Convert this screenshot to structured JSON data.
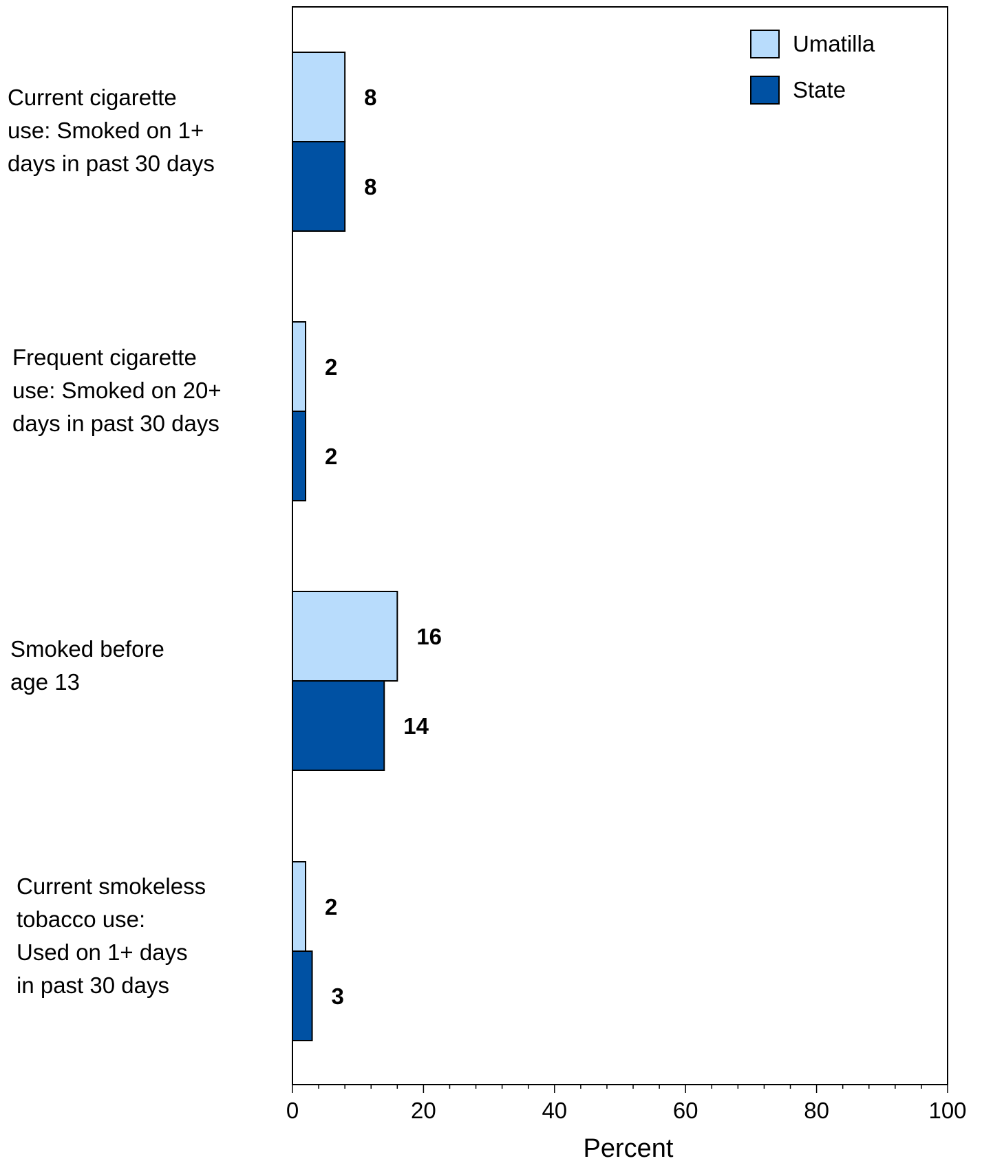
{
  "chart_data": {
    "type": "bar",
    "orientation": "horizontal",
    "title": "",
    "xlabel": "Percent",
    "ylabel": "",
    "xlim": [
      0,
      100
    ],
    "x_ticks": [
      "0",
      "20",
      "40",
      "60",
      "80",
      "100"
    ],
    "grid": false,
    "legend_position": "top-right",
    "categories": [
      "Current cigarette\nuse: Smoked on 1+\ndays in past 30 days",
      "Frequent cigarette\nuse: Smoked on 20+\ndays in past 30 days",
      "Smoked before\nage 13",
      "Current smokeless\ntobacco use:\nUsed on 1+ days\nin past 30 days"
    ],
    "series": [
      {
        "name": "Umatilla",
        "color": "#b8dcfc",
        "values": [
          8,
          2,
          16,
          2
        ],
        "labels": [
          "8",
          "2",
          "16",
          "2"
        ]
      },
      {
        "name": "State",
        "color": "#0051a3",
        "values": [
          8,
          2,
          14,
          3
        ],
        "labels": [
          "8",
          "2",
          "14",
          "3"
        ]
      }
    ]
  }
}
